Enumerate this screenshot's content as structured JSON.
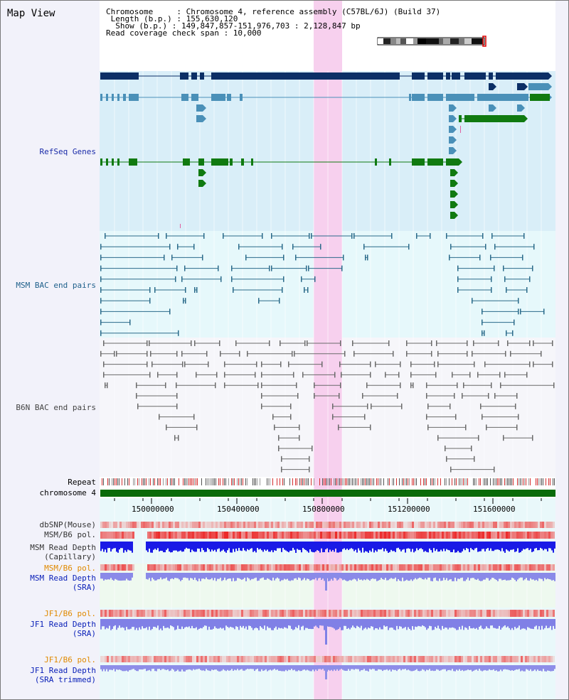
{
  "page": {
    "title": "Map View"
  },
  "info": {
    "chromosome_line": "Chromosome     : Chromosome 4, reference assembly (C57BL/6J) (Build 37)",
    "length_line": " Length (b.p.) : 155,630,120",
    "show_line": "  Show (b.p.) : 149,847,857-151,976,703 : 2,128,847 bp",
    "span_line": "Read coverage check span : 10,000"
  },
  "tracks": {
    "refseq": "RefSeq Genes",
    "msm_bac": "MSM BAC end pairs",
    "b6n_bac": "B6N BAC end pairs",
    "repeat": "Repeat",
    "chromosome": "chromosome 4",
    "dbsnp": "dbSNP(Mouse)",
    "msm_b6_pol_1": "MSM/B6 pol.",
    "msm_depth_cap_1": "MSM Read Depth",
    "msm_depth_cap_2": "(Capillary)",
    "msm_b6_pol_2": "MSM/B6 pol.",
    "msm_depth_sra_1": "MSM Read Depth",
    "msm_depth_sra_2": "(SRA)",
    "jf1_b6_pol_1": "JF1/B6 pol.",
    "jf1_depth_sra_1": "JF1 Read Depth",
    "jf1_depth_sra_2": "(SRA)",
    "jf1_b6_pol_2": "JF1/B6 pol.",
    "jf1_depth_trim_1": "JF1 Read Depth",
    "jf1_depth_trim_2": "(SRA trimmed)"
  },
  "axis": {
    "ticks": [
      "150000000",
      "150400000",
      "150800000",
      "151200000",
      "151600000"
    ]
  },
  "colors": {
    "refseq_bg": "#d9eef8",
    "msm_bg": "#e6f8fb",
    "b6n_bg": "#f6f6fa",
    "highlight": "#f7d0ee",
    "chromosome_bar": "#0a6b0a",
    "gene_navy": "#0c2f66",
    "gene_steel": "#4a90b8",
    "gene_green": "#107a10",
    "msm_pair": "#2a6a8a",
    "b6n_pair": "#6a6a6a"
  }
}
